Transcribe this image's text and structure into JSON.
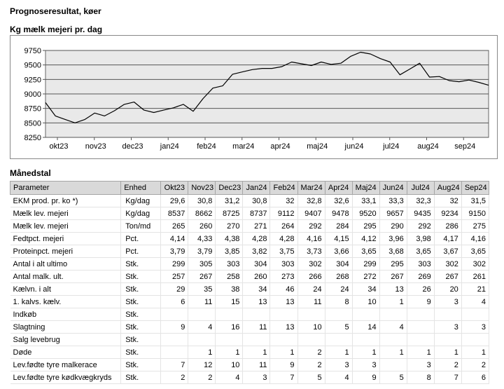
{
  "page": {
    "title": "Prognoseresultat, køer"
  },
  "chart_data": {
    "type": "line",
    "title": "Kg mælk mejeri pr. dag",
    "ylim": [
      8250,
      9750
    ],
    "yticks": [
      8250,
      8500,
      8750,
      9000,
      9250,
      9500,
      9750
    ],
    "x_labels": [
      "okt23",
      "nov23",
      "dec23",
      "jan24",
      "feb24",
      "mar24",
      "apr24",
      "maj24",
      "jun24",
      "jul24",
      "aug24",
      "sep24"
    ],
    "grid": true,
    "series": [
      {
        "values": [
          8850,
          8620,
          8560,
          8500,
          8560,
          8670,
          8620,
          8710,
          8820,
          8860,
          8720,
          8680,
          8720,
          8760,
          8820,
          8700,
          8920,
          9100,
          9140,
          9340,
          9380,
          9420,
          9440,
          9440,
          9470,
          9550,
          9520,
          9490,
          9550,
          9510,
          9530,
          9650,
          9720,
          9690,
          9610,
          9550,
          9330,
          9430,
          9530,
          9290,
          9300,
          9230,
          9210,
          9240,
          9200,
          9150
        ]
      }
    ]
  },
  "table": {
    "title": "Månedstal",
    "headers": [
      "Parameter",
      "Enhed",
      "Okt23",
      "Nov23",
      "Dec23",
      "Jan24",
      "Feb24",
      "Mar24",
      "Apr24",
      "Maj24",
      "Jun24",
      "Jul24",
      "Aug24",
      "Sep24"
    ],
    "rows": [
      {
        "param": "EKM prod. pr. ko *)",
        "unit": "Kg/dag",
        "values": [
          "29,6",
          "30,8",
          "31,2",
          "30,8",
          "32",
          "32,8",
          "32,6",
          "33,1",
          "33,3",
          "32,3",
          "32",
          "31,5"
        ]
      },
      {
        "param": "Mælk lev. mejeri",
        "unit": "Kg/dag",
        "values": [
          "8537",
          "8662",
          "8725",
          "8737",
          "9112",
          "9407",
          "9478",
          "9520",
          "9657",
          "9435",
          "9234",
          "9150"
        ]
      },
      {
        "param": "Mælk lev. mejeri",
        "unit": "Ton/md",
        "values": [
          "265",
          "260",
          "270",
          "271",
          "264",
          "292",
          "284",
          "295",
          "290",
          "292",
          "286",
          "275"
        ]
      },
      {
        "param": "Fedtpct. mejeri",
        "unit": "Pct.",
        "values": [
          "4,14",
          "4,33",
          "4,38",
          "4,28",
          "4,28",
          "4,16",
          "4,15",
          "4,12",
          "3,96",
          "3,98",
          "4,17",
          "4,16"
        ]
      },
      {
        "param": "Proteinpct. mejeri",
        "unit": "Pct.",
        "values": [
          "3,79",
          "3,79",
          "3,85",
          "3,82",
          "3,75",
          "3,73",
          "3,66",
          "3,65",
          "3,68",
          "3,65",
          "3,67",
          "3,65"
        ]
      },
      {
        "param": "Antal i alt ultimo",
        "unit": "Stk.",
        "values": [
          "299",
          "305",
          "303",
          "304",
          "303",
          "302",
          "304",
          "299",
          "295",
          "303",
          "302",
          "302"
        ]
      },
      {
        "param": "Antal malk. ult.",
        "unit": "Stk.",
        "values": [
          "257",
          "267",
          "258",
          "260",
          "273",
          "266",
          "268",
          "272",
          "267",
          "269",
          "267",
          "261"
        ]
      },
      {
        "param": "Kælvn. i alt",
        "unit": "Stk.",
        "values": [
          "29",
          "35",
          "38",
          "34",
          "46",
          "24",
          "24",
          "34",
          "13",
          "26",
          "20",
          "21"
        ]
      },
      {
        "param": "1. kalvs. kælv.",
        "unit": "Stk.",
        "values": [
          "6",
          "11",
          "15",
          "13",
          "13",
          "11",
          "8",
          "10",
          "1",
          "9",
          "3",
          "4"
        ]
      },
      {
        "param": "Indkøb",
        "unit": "Stk.",
        "values": [
          "",
          "",
          "",
          "",
          "",
          "",
          "",
          "",
          "",
          "",
          "",
          ""
        ]
      },
      {
        "param": "Slagtning",
        "unit": "Stk.",
        "values": [
          "9",
          "4",
          "16",
          "11",
          "13",
          "10",
          "5",
          "14",
          "4",
          "",
          "3",
          "3"
        ]
      },
      {
        "param": "Salg levebrug",
        "unit": "Stk.",
        "values": [
          "",
          "",
          "",
          "",
          "",
          "",
          "",
          "",
          "",
          "",
          "",
          ""
        ]
      },
      {
        "param": "Døde",
        "unit": "Stk.",
        "values": [
          "",
          "1",
          "1",
          "1",
          "1",
          "2",
          "1",
          "1",
          "1",
          "1",
          "1",
          "1"
        ]
      },
      {
        "param": "Lev.fødte tyre malkerace",
        "unit": "Stk.",
        "values": [
          "7",
          "12",
          "10",
          "11",
          "9",
          "2",
          "3",
          "3",
          "",
          "3",
          "2",
          "2"
        ]
      },
      {
        "param": "Lev.fødte tyre kødkvægkryds",
        "unit": "Stk.",
        "values": [
          "2",
          "2",
          "4",
          "3",
          "7",
          "5",
          "4",
          "9",
          "5",
          "8",
          "7",
          "6"
        ]
      }
    ]
  }
}
